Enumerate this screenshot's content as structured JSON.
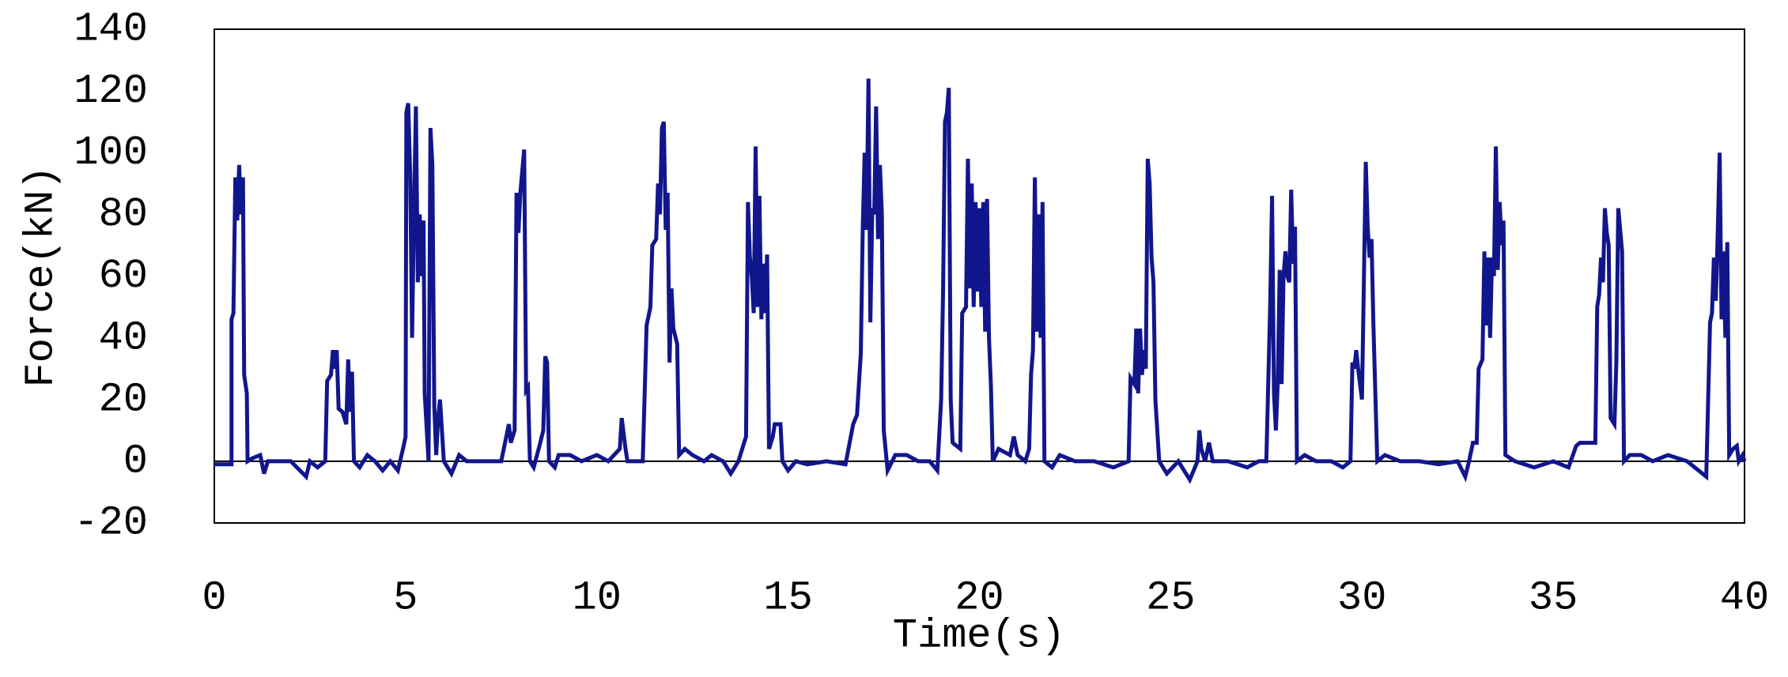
{
  "chart_data": {
    "type": "line",
    "xlabel": "Time(s)",
    "ylabel": "Force(kN)",
    "xlim": [
      0,
      40
    ],
    "xticks": [
      0,
      5,
      10,
      15,
      20,
      25,
      30,
      35,
      40
    ],
    "ylim": [
      -20,
      140
    ],
    "yticks": [
      -20,
      0,
      20,
      40,
      60,
      80,
      100,
      120,
      140
    ],
    "grid": false,
    "x": [
      0,
      0.45,
      0.45,
      0.5,
      0.55,
      0.6,
      0.65,
      0.7,
      0.75,
      0.78,
      0.85,
      0.87,
      1.0,
      1.2,
      1.3,
      1.4,
      2.0,
      2.4,
      2.5,
      2.7,
      2.9,
      2.95,
      3.05,
      3.1,
      3.15,
      3.2,
      3.25,
      3.35,
      3.45,
      3.5,
      3.55,
      3.6,
      3.65,
      3.8,
      4.0,
      4.2,
      4.4,
      4.6,
      4.8,
      4.95,
      5.0,
      5.02,
      5.07,
      5.12,
      5.17,
      5.22,
      5.27,
      5.32,
      5.37,
      5.42,
      5.47,
      5.5,
      5.6,
      5.65,
      5.7,
      5.75,
      5.8,
      5.85,
      5.9,
      5.95,
      6.0,
      6.2,
      6.4,
      6.6,
      7.0,
      7.5,
      7.6,
      7.7,
      7.75,
      7.85,
      7.9,
      7.95,
      8.0,
      8.1,
      8.15,
      8.2,
      8.25,
      8.35,
      8.5,
      8.6,
      8.65,
      8.7,
      8.75,
      8.9,
      9.0,
      9.3,
      9.6,
      10.0,
      10.3,
      10.6,
      10.65,
      10.75,
      10.8,
      11.2,
      11.3,
      11.4,
      11.45,
      11.55,
      11.6,
      11.65,
      11.7,
      11.75,
      11.8,
      11.85,
      11.9,
      11.95,
      12.0,
      12.1,
      12.15,
      12.3,
      12.5,
      12.8,
      13.0,
      13.3,
      13.5,
      13.7,
      13.9,
      13.95,
      14.0,
      14.05,
      14.1,
      14.15,
      14.2,
      14.25,
      14.3,
      14.35,
      14.4,
      14.45,
      14.5,
      14.6,
      14.65,
      14.8,
      14.85,
      15.0,
      15.2,
      15.5,
      16.0,
      16.5,
      16.7,
      16.8,
      16.9,
      16.95,
      17.0,
      17.05,
      17.1,
      17.15,
      17.2,
      17.25,
      17.3,
      17.35,
      17.4,
      17.45,
      17.5,
      17.6,
      17.8,
      18.1,
      18.4,
      18.7,
      18.9,
      19.0,
      19.05,
      19.1,
      19.15,
      19.2,
      19.25,
      19.3,
      19.5,
      19.55,
      19.65,
      19.7,
      19.75,
      19.8,
      19.85,
      19.9,
      19.95,
      20.0,
      20.05,
      20.1,
      20.15,
      20.2,
      20.25,
      20.3,
      20.35,
      20.5,
      20.8,
      20.9,
      21.0,
      21.2,
      21.3,
      21.35,
      21.4,
      21.45,
      21.5,
      21.55,
      21.6,
      21.65,
      21.7,
      21.9,
      22.1,
      22.5,
      23.0,
      23.5,
      23.9,
      23.95,
      24.05,
      24.1,
      24.15,
      24.2,
      24.25,
      24.3,
      24.35,
      24.4,
      24.45,
      24.5,
      24.55,
      24.6,
      24.7,
      24.9,
      25.2,
      25.5,
      25.7,
      25.75,
      25.8,
      25.9,
      26.0,
      26.1,
      26.5,
      27.0,
      27.3,
      27.5,
      27.6,
      27.65,
      27.7,
      27.75,
      27.8,
      27.85,
      27.9,
      27.95,
      28.0,
      28.05,
      28.1,
      28.15,
      28.2,
      28.25,
      28.3,
      28.5,
      28.8,
      29.2,
      29.5,
      29.7,
      29.75,
      29.8,
      29.85,
      29.9,
      30.0,
      30.05,
      30.1,
      30.15,
      30.2,
      30.25,
      30.3,
      30.4,
      30.6,
      31.0,
      31.5,
      32.0,
      32.5,
      32.7,
      32.8,
      32.9,
      33.0,
      33.05,
      33.15,
      33.2,
      33.25,
      33.3,
      33.35,
      33.4,
      33.45,
      33.5,
      33.55,
      33.6,
      33.65,
      33.7,
      33.75,
      34.0,
      34.5,
      35.0,
      35.4,
      35.6,
      35.7,
      36.1,
      36.15,
      36.2,
      36.25,
      36.3,
      36.35,
      36.4,
      36.45,
      36.5,
      36.6,
      36.65,
      36.7,
      36.8,
      36.85,
      37.0,
      37.3,
      37.6,
      38.0,
      38.5,
      38.8,
      39.0,
      39.1,
      39.15,
      39.2,
      39.25,
      39.3,
      39.35,
      39.4,
      39.45,
      39.5,
      39.55,
      39.6,
      39.7,
      39.8,
      39.85,
      39.95,
      40.0
    ],
    "series": [
      {
        "name": "Force",
        "color": "#12168c",
        "values": [
          -1,
          -1,
          46,
          48,
          92,
          78,
          96,
          80,
          92,
          28,
          22,
          0,
          1,
          2,
          -4,
          0,
          0,
          -5,
          0,
          -2,
          0,
          26,
          28,
          36,
          30,
          36,
          17,
          16,
          12,
          33,
          16,
          29,
          0,
          -2,
          2,
          0,
          -3,
          0,
          -3,
          5,
          8,
          113,
          116,
          93,
          40,
          82,
          115,
          58,
          80,
          60,
          78,
          22,
          0,
          108,
          96,
          18,
          2,
          14,
          20,
          10,
          0,
          -4,
          2,
          0,
          0,
          0,
          6,
          12,
          6,
          10,
          87,
          74,
          87,
          101,
          23,
          24,
          0,
          -2,
          5,
          10,
          34,
          32,
          0,
          -2,
          2,
          2,
          0,
          2,
          0,
          4,
          14,
          4,
          0,
          0,
          44,
          50,
          70,
          72,
          90,
          80,
          108,
          110,
          75,
          87,
          32,
          56,
          43,
          38,
          2,
          4,
          2,
          0,
          2,
          0,
          -4,
          0,
          8,
          84,
          66,
          60,
          48,
          102,
          50,
          86,
          46,
          64,
          48,
          67,
          4,
          8,
          12,
          12,
          0,
          -3,
          0,
          -1,
          0,
          -1,
          12,
          15,
          35,
          75,
          100,
          75,
          124,
          45,
          82,
          80,
          115,
          72,
          96,
          80,
          10,
          -3,
          2,
          2,
          0,
          0,
          -3,
          20,
          55,
          110,
          113,
          121,
          20,
          6,
          4,
          48,
          50,
          98,
          56,
          90,
          50,
          84,
          55,
          82,
          50,
          84,
          42,
          85,
          40,
          25,
          0,
          4,
          2,
          8,
          2,
          0,
          4,
          28,
          36,
          92,
          42,
          80,
          40,
          84,
          0,
          -2,
          2,
          0,
          0,
          -2,
          0,
          27,
          25,
          43,
          22,
          43,
          28,
          36,
          30,
          98,
          90,
          66,
          58,
          20,
          0,
          -4,
          0,
          -6,
          0,
          10,
          4,
          0,
          6,
          0,
          0,
          -2,
          0,
          0,
          50,
          86,
          22,
          10,
          26,
          62,
          25,
          60,
          68,
          60,
          58,
          88,
          64,
          76,
          0,
          2,
          0,
          0,
          -2,
          0,
          32,
          30,
          36,
          30,
          20,
          58,
          97,
          76,
          66,
          72,
          44,
          0,
          2,
          0,
          0,
          -1,
          0,
          -5,
          0,
          6,
          6,
          30,
          33,
          68,
          44,
          66,
          40,
          66,
          60,
          102,
          62,
          84,
          70,
          78,
          2,
          0,
          -2,
          0,
          -2,
          5,
          6,
          6,
          50,
          54,
          66,
          58,
          82,
          74,
          70,
          14,
          12,
          32,
          82,
          68,
          0,
          2,
          2,
          0,
          2,
          0,
          -3,
          -5,
          45,
          48,
          66,
          52,
          74,
          100,
          46,
          68,
          40,
          71,
          2,
          4,
          5,
          0,
          2,
          0
        ]
      }
    ]
  }
}
